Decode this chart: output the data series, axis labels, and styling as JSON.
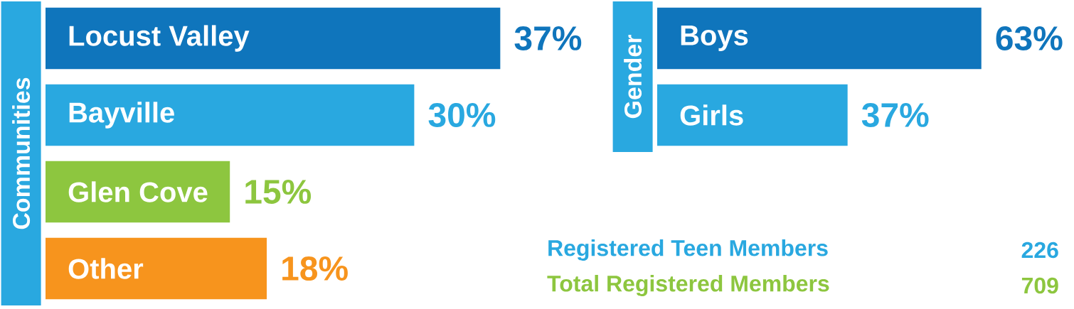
{
  "chart_data": [
    {
      "type": "bar",
      "orientation": "horizontal",
      "ylabel": "Communities",
      "categories": [
        "Locust Valley",
        "Bayville",
        "Glen Cove",
        "Other"
      ],
      "values": [
        37,
        30,
        15,
        18
      ],
      "colors": [
        "#0f75bc",
        "#29a8e0",
        "#8dc63f",
        "#f7941d"
      ],
      "value_labels": [
        "37%",
        "30%",
        "15%",
        "18%"
      ]
    },
    {
      "type": "bar",
      "orientation": "horizontal",
      "ylabel": "Gender",
      "categories": [
        "Boys",
        "Girls"
      ],
      "values": [
        63,
        37
      ],
      "colors": [
        "#0f75bc",
        "#29a8e0"
      ],
      "value_labels": [
        "63%",
        "37%"
      ]
    },
    {
      "type": "other",
      "annotations": [
        "Registered Teen Members",
        "226",
        "Total Registered Members",
        "709"
      ]
    }
  ]
}
